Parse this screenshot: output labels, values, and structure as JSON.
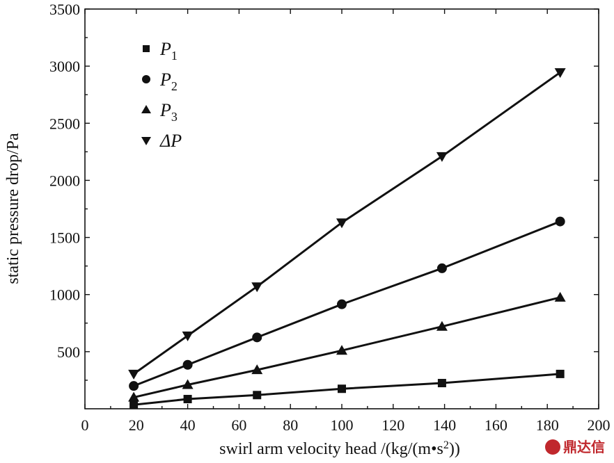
{
  "chart_data": {
    "type": "line",
    "xlabel": "swirl arm velocity head /(kg/(m•s",
    "xlabel_sup": "2",
    "xlabel_end": "))",
    "ylabel": "static pressure drop/Pa",
    "xlim": [
      0,
      200
    ],
    "ylim": [
      0,
      3500
    ],
    "xticks": [
      "0",
      "20",
      "40",
      "60",
      "80",
      "100",
      "120",
      "140",
      "160",
      "180",
      "200"
    ],
    "yticks": [
      "500",
      "1000",
      "1500",
      "2000",
      "2500",
      "3000",
      "3500"
    ],
    "legend_position": "top-left",
    "x": [
      19,
      40,
      67,
      100,
      139,
      185
    ],
    "series": [
      {
        "name": "P",
        "sub": "1",
        "marker": "square",
        "values": [
          35,
          85,
          120,
          175,
          225,
          305
        ]
      },
      {
        "name": "P",
        "sub": "2",
        "marker": "circle",
        "values": [
          200,
          385,
          625,
          915,
          1230,
          1640
        ]
      },
      {
        "name": "P",
        "sub": "3",
        "marker": "triangle-up",
        "values": [
          100,
          210,
          340,
          510,
          720,
          975
        ]
      },
      {
        "name": "ΔP",
        "sub": "",
        "marker": "triangle-down",
        "values": [
          305,
          640,
          1070,
          1630,
          2210,
          2945
        ]
      }
    ]
  },
  "watermark": {
    "text": "鼎达信"
  }
}
